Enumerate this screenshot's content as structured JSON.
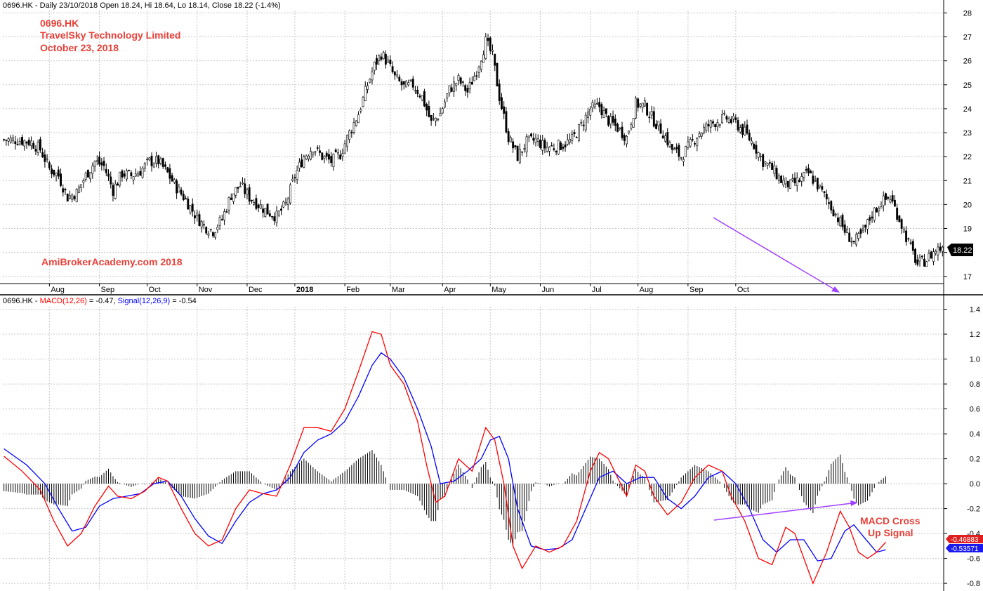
{
  "price_panel": {
    "header": "0696.HK - Daily 23/10/2018 Open 18.24, Hi 18.64, Lo 18.14, Close 18.22 (-1.4%)",
    "annotation_lines": [
      "0696.HK",
      "TravelSky Technology Limited",
      "October 23, 2018"
    ],
    "watermark": "AmiBrokerAcademy.com  2018",
    "last_price_label": "18.22"
  },
  "macd_panel": {
    "header_prefix": "0696.HK - ",
    "macd_label": "MACD(12,26)",
    "macd_value_text": " = -0.47, ",
    "signal_label": "Signal(12,26,9)",
    "signal_value_text": " = -0.54",
    "annotation_lines": [
      "MACD Cross",
      "Up Signal"
    ],
    "macd_last_label": "-0.46883",
    "signal_last_label": "-0.53571"
  },
  "colors": {
    "up_annotation": "#e8413a",
    "macd_line": "#ff0000",
    "signal_line": "#0000ff",
    "divergence_arrow": "#a040ff",
    "candle": "#000000",
    "grid": "#c8c8c8"
  },
  "chart_data": [
    {
      "type": "candlestick",
      "series_name": "0696.HK",
      "x_ticks": [
        "Aug",
        "Sep",
        "Oct",
        "Nov",
        "Dec",
        "2018",
        "Feb",
        "Mar",
        "Apr",
        "May",
        "Jun",
        "Jul",
        "Aug",
        "Sep",
        "Oct"
      ],
      "y_ticks": [
        17,
        18,
        19,
        20,
        21,
        22,
        23,
        24,
        25,
        26,
        27,
        28
      ],
      "ylim": [
        16.7,
        28.1
      ],
      "grid": true,
      "close_path": [
        [
          0,
          22.7
        ],
        [
          6,
          22.7
        ],
        [
          12,
          22.6
        ],
        [
          16,
          22.3
        ],
        [
          20,
          21.5
        ],
        [
          24,
          21.2
        ],
        [
          28,
          20.3
        ],
        [
          32,
          20.5
        ],
        [
          36,
          21.2
        ],
        [
          40,
          21.8
        ],
        [
          44,
          21.6
        ],
        [
          48,
          20.6
        ],
        [
          52,
          21.3
        ],
        [
          56,
          21.2
        ],
        [
          60,
          21.4
        ],
        [
          64,
          21.8
        ],
        [
          68,
          21.8
        ],
        [
          72,
          21.3
        ],
        [
          76,
          20.7
        ],
        [
          80,
          20.2
        ],
        [
          84,
          19.6
        ],
        [
          88,
          19.1
        ],
        [
          92,
          18.9
        ],
        [
          96,
          19.4
        ],
        [
          100,
          20.4
        ],
        [
          104,
          20.8
        ],
        [
          108,
          20.3
        ],
        [
          112,
          20.0
        ],
        [
          116,
          19.7
        ],
        [
          120,
          19.5
        ],
        [
          124,
          20.0
        ],
        [
          128,
          21.2
        ],
        [
          132,
          22.0
        ],
        [
          136,
          22.4
        ],
        [
          140,
          22.0
        ],
        [
          144,
          21.8
        ],
        [
          148,
          22.1
        ],
        [
          152,
          23.0
        ],
        [
          156,
          23.8
        ],
        [
          160,
          25.0
        ],
        [
          163,
          25.8
        ],
        [
          166,
          26.3
        ],
        [
          169,
          25.9
        ],
        [
          172,
          25.3
        ],
        [
          176,
          24.9
        ],
        [
          180,
          25.0
        ],
        [
          184,
          24.5
        ],
        [
          188,
          23.4
        ],
        [
          192,
          23.8
        ],
        [
          196,
          24.8
        ],
        [
          200,
          25.2
        ],
        [
          204,
          24.7
        ],
        [
          208,
          25.6
        ],
        [
          212,
          26.8
        ],
        [
          215,
          26.2
        ],
        [
          218,
          24.5
        ],
        [
          222,
          22.8
        ],
        [
          226,
          22.0
        ],
        [
          230,
          22.6
        ],
        [
          234,
          22.7
        ],
        [
          238,
          22.4
        ],
        [
          242,
          22.4
        ],
        [
          246,
          22.5
        ],
        [
          250,
          22.7
        ],
        [
          254,
          23.3
        ],
        [
          258,
          24.0
        ],
        [
          262,
          24.1
        ],
        [
          266,
          23.5
        ],
        [
          270,
          23.2
        ],
        [
          274,
          22.8
        ],
        [
          278,
          24.2
        ],
        [
          282,
          24.1
        ],
        [
          286,
          23.5
        ],
        [
          290,
          23.0
        ],
        [
          294,
          22.3
        ],
        [
          298,
          22.0
        ],
        [
          302,
          22.5
        ],
        [
          306,
          23.0
        ],
        [
          310,
          23.3
        ],
        [
          314,
          23.5
        ],
        [
          318,
          23.6
        ],
        [
          322,
          23.4
        ],
        [
          326,
          23.0
        ],
        [
          330,
          22.5
        ],
        [
          334,
          21.8
        ],
        [
          338,
          21.5
        ],
        [
          342,
          21.0
        ],
        [
          346,
          20.8
        ],
        [
          350,
          21.0
        ],
        [
          354,
          21.3
        ],
        [
          358,
          20.8
        ],
        [
          362,
          20.2
        ],
        [
          366,
          19.6
        ],
        [
          370,
          18.9
        ],
        [
          374,
          18.4
        ],
        [
          378,
          18.8
        ],
        [
          382,
          19.6
        ],
        [
          386,
          20.1
        ],
        [
          390,
          20.3
        ],
        [
          394,
          19.4
        ],
        [
          398,
          18.4
        ],
        [
          402,
          17.5
        ],
        [
          406,
          17.7
        ],
        [
          410,
          18.1
        ],
        [
          413,
          18.22
        ]
      ],
      "last_close": 18.22
    },
    {
      "type": "line",
      "series": [
        {
          "name": "MACD(12,26)",
          "values": [
            [
              0,
              0.22
            ],
            [
              8,
              0.1
            ],
            [
              16,
              -0.05
            ],
            [
              22,
              -0.3
            ],
            [
              28,
              -0.5
            ],
            [
              34,
              -0.4
            ],
            [
              40,
              -0.18
            ],
            [
              46,
              -0.02
            ],
            [
              50,
              -0.1
            ],
            [
              56,
              -0.12
            ],
            [
              62,
              -0.06
            ],
            [
              68,
              0.05
            ],
            [
              72,
              0.02
            ],
            [
              78,
              -0.2
            ],
            [
              84,
              -0.4
            ],
            [
              90,
              -0.5
            ],
            [
              96,
              -0.45
            ],
            [
              102,
              -0.2
            ],
            [
              108,
              -0.05
            ],
            [
              114,
              -0.08
            ],
            [
              120,
              -0.1
            ],
            [
              126,
              0.15
            ],
            [
              132,
              0.45
            ],
            [
              138,
              0.45
            ],
            [
              144,
              0.42
            ],
            [
              150,
              0.6
            ],
            [
              156,
              0.9
            ],
            [
              162,
              1.22
            ],
            [
              166,
              1.2
            ],
            [
              170,
              0.95
            ],
            [
              176,
              0.8
            ],
            [
              182,
              0.5
            ],
            [
              186,
              0.15
            ],
            [
              190,
              -0.15
            ],
            [
              194,
              -0.1
            ],
            [
              200,
              0.2
            ],
            [
              206,
              0.1
            ],
            [
              212,
              0.45
            ],
            [
              216,
              0.35
            ],
            [
              220,
              0.0
            ],
            [
              224,
              -0.5
            ],
            [
              228,
              -0.68
            ],
            [
              234,
              -0.5
            ],
            [
              240,
              -0.55
            ],
            [
              246,
              -0.5
            ],
            [
              252,
              -0.3
            ],
            [
              258,
              0.1
            ],
            [
              262,
              0.25
            ],
            [
              266,
              0.2
            ],
            [
              270,
              0.05
            ],
            [
              274,
              -0.1
            ],
            [
              278,
              0.15
            ],
            [
              282,
              0.1
            ],
            [
              286,
              -0.1
            ],
            [
              292,
              -0.25
            ],
            [
              298,
              -0.15
            ],
            [
              304,
              0.05
            ],
            [
              310,
              0.15
            ],
            [
              316,
              0.1
            ],
            [
              320,
              -0.1
            ],
            [
              326,
              -0.3
            ],
            [
              332,
              -0.6
            ],
            [
              338,
              -0.65
            ],
            [
              344,
              -0.35
            ],
            [
              348,
              -0.4
            ],
            [
              352,
              -0.6
            ],
            [
              356,
              -0.8
            ],
            [
              362,
              -0.55
            ],
            [
              368,
              -0.22
            ],
            [
              372,
              -0.35
            ],
            [
              376,
              -0.55
            ],
            [
              380,
              -0.6
            ],
            [
              384,
              -0.55
            ],
            [
              388,
              -0.47
            ]
          ]
        },
        {
          "name": "Signal(12,26,9)",
          "values": [
            [
              0,
              0.28
            ],
            [
              10,
              0.15
            ],
            [
              18,
              0.0
            ],
            [
              24,
              -0.2
            ],
            [
              30,
              -0.38
            ],
            [
              36,
              -0.35
            ],
            [
              42,
              -0.18
            ],
            [
              48,
              -0.12
            ],
            [
              54,
              -0.1
            ],
            [
              60,
              -0.08
            ],
            [
              66,
              0.0
            ],
            [
              72,
              0.02
            ],
            [
              78,
              -0.1
            ],
            [
              84,
              -0.28
            ],
            [
              90,
              -0.42
            ],
            [
              96,
              -0.48
            ],
            [
              102,
              -0.3
            ],
            [
              108,
              -0.15
            ],
            [
              114,
              -0.08
            ],
            [
              120,
              -0.05
            ],
            [
              126,
              0.05
            ],
            [
              132,
              0.25
            ],
            [
              138,
              0.35
            ],
            [
              144,
              0.4
            ],
            [
              150,
              0.5
            ],
            [
              156,
              0.7
            ],
            [
              162,
              0.95
            ],
            [
              166,
              1.05
            ],
            [
              170,
              1.0
            ],
            [
              176,
              0.85
            ],
            [
              182,
              0.6
            ],
            [
              188,
              0.3
            ],
            [
              192,
              0.0
            ],
            [
              198,
              0.02
            ],
            [
              204,
              0.1
            ],
            [
              210,
              0.2
            ],
            [
              214,
              0.35
            ],
            [
              218,
              0.38
            ],
            [
              222,
              0.2
            ],
            [
              226,
              -0.2
            ],
            [
              232,
              -0.5
            ],
            [
              238,
              -0.53
            ],
            [
              244,
              -0.52
            ],
            [
              250,
              -0.45
            ],
            [
              256,
              -0.2
            ],
            [
              262,
              0.05
            ],
            [
              268,
              0.1
            ],
            [
              274,
              0.0
            ],
            [
              280,
              0.05
            ],
            [
              286,
              0.05
            ],
            [
              292,
              -0.12
            ],
            [
              298,
              -0.2
            ],
            [
              304,
              -0.1
            ],
            [
              310,
              0.05
            ],
            [
              316,
              0.1
            ],
            [
              322,
              0.0
            ],
            [
              328,
              -0.2
            ],
            [
              334,
              -0.45
            ],
            [
              340,
              -0.55
            ],
            [
              346,
              -0.45
            ],
            [
              352,
              -0.45
            ],
            [
              358,
              -0.62
            ],
            [
              364,
              -0.6
            ],
            [
              370,
              -0.38
            ],
            [
              374,
              -0.33
            ],
            [
              378,
              -0.42
            ],
            [
              384,
              -0.55
            ],
            [
              388,
              -0.53
            ]
          ]
        }
      ],
      "histogram_name": "MACD - Signal",
      "y_ticks": [
        -0.8,
        -0.6,
        -0.4,
        -0.2,
        0.0,
        0.2,
        0.4,
        0.6,
        0.8,
        1.0,
        1.2,
        1.4
      ],
      "ylim": [
        -0.85,
        1.42
      ],
      "grid": true,
      "last_macd": -0.46883,
      "last_signal": -0.53571
    }
  ]
}
